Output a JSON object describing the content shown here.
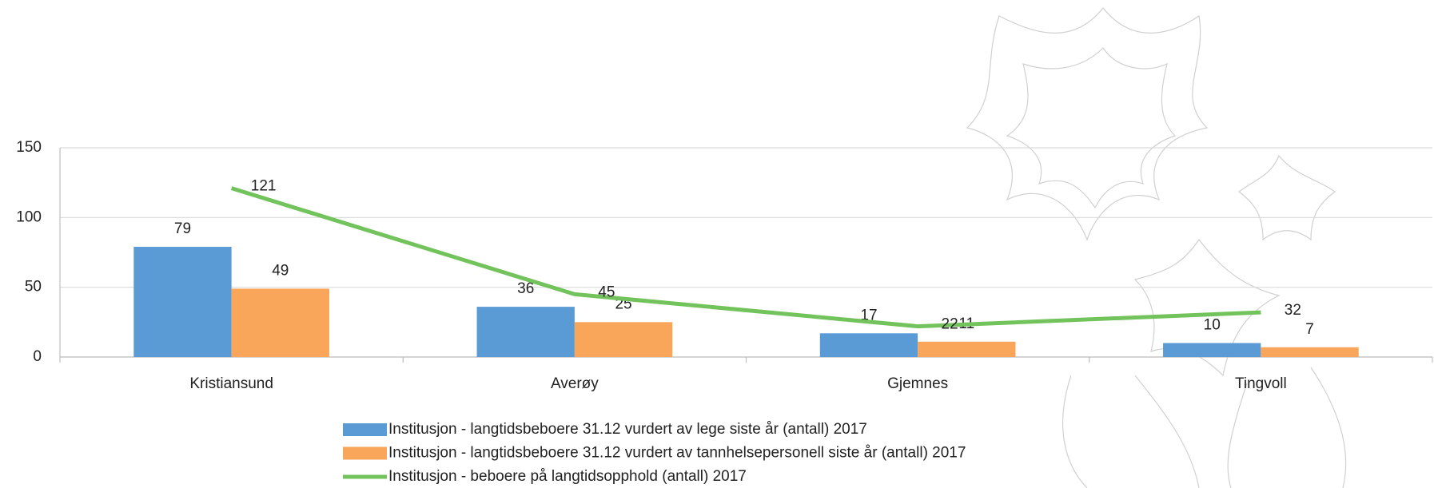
{
  "chart_data": {
    "type": "bar",
    "categories": [
      "Kristiansund",
      "Averøy",
      "Gjemnes",
      "Tingvoll"
    ],
    "series": [
      {
        "name": "Institusjon - langtidsbeboere 31.12 vurdert av lege siste år (antall) 2017",
        "color": "#5b9bd5",
        "values": [
          79,
          36,
          17,
          10
        ]
      },
      {
        "name": "Institusjon - langtidsbeboere 31.12 vurdert av tannhelsepersonell siste år (antall) 2017",
        "color": "#f9a65a",
        "values": [
          49,
          25,
          11,
          7
        ]
      },
      {
        "name": "Institusjon - beboere på langtidsopphold (antall) 2017",
        "color": "#72c35b",
        "type": "line",
        "values": [
          121,
          45,
          22,
          32
        ]
      }
    ],
    "ylim": [
      0,
      150
    ],
    "yticks": [
      0,
      50,
      100,
      150
    ],
    "grid": true
  }
}
